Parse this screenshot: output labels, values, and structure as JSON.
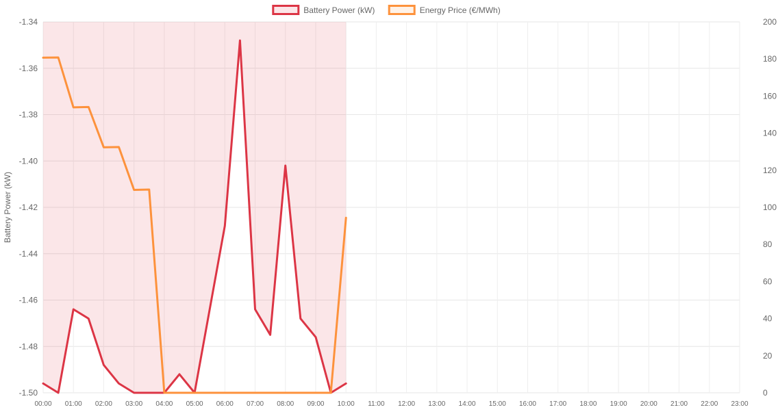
{
  "chart_data": {
    "type": "line",
    "x": [
      "00:00",
      "00:30",
      "01:00",
      "01:30",
      "02:00",
      "02:30",
      "03:00",
      "03:30",
      "04:00",
      "04:30",
      "05:00",
      "05:30",
      "06:00",
      "06:30",
      "07:00",
      "07:30",
      "08:00",
      "08:30",
      "09:00",
      "09:30",
      "10:00"
    ],
    "x_ticks": [
      "00:00",
      "01:00",
      "02:00",
      "03:00",
      "04:00",
      "05:00",
      "06:00",
      "07:00",
      "08:00",
      "09:00",
      "10:00",
      "11:00",
      "12:00",
      "13:00",
      "14:00",
      "15:00",
      "16:00",
      "17:00",
      "18:00",
      "19:00",
      "20:00",
      "21:00",
      "22:00",
      "23:00"
    ],
    "series": [
      {
        "name": "Battery Power (kW)",
        "axis": "left",
        "color": "#dc3545",
        "fill": "rgba(220,53,69,0.12)",
        "values": [
          -1.496,
          -1.5,
          -1.464,
          -1.468,
          -1.488,
          -1.496,
          -1.5,
          -1.5,
          -1.5,
          -1.492,
          -1.5,
          -1.464,
          -1.428,
          -1.348,
          -1.464,
          -1.475,
          -1.402,
          -1.468,
          -1.476,
          -1.5,
          -1.496
        ]
      },
      {
        "name": "Energy Price (€/MWh)",
        "axis": "right",
        "color": "#fd923c",
        "values": [
          180.7,
          180.8,
          153.9,
          154.1,
          132.4,
          132.5,
          109.4,
          109.6,
          0,
          0,
          0,
          0,
          0,
          0,
          0,
          0,
          0,
          0,
          0,
          0,
          94.4
        ]
      }
    ],
    "y_left": {
      "label": "Battery Power (kW)",
      "min": -1.5,
      "max": -1.34,
      "ticks": [
        "-1.34",
        "-1.36",
        "-1.38",
        "-1.40",
        "-1.42",
        "-1.44",
        "-1.46",
        "-1.48",
        "-1.50"
      ]
    },
    "y_right": {
      "label": "",
      "min": 0,
      "max": 200,
      "ticks": [
        "200",
        "180",
        "160",
        "140",
        "120",
        "100",
        "80",
        "60",
        "40",
        "20",
        "0"
      ]
    },
    "grid": true,
    "legend": "top-center"
  }
}
